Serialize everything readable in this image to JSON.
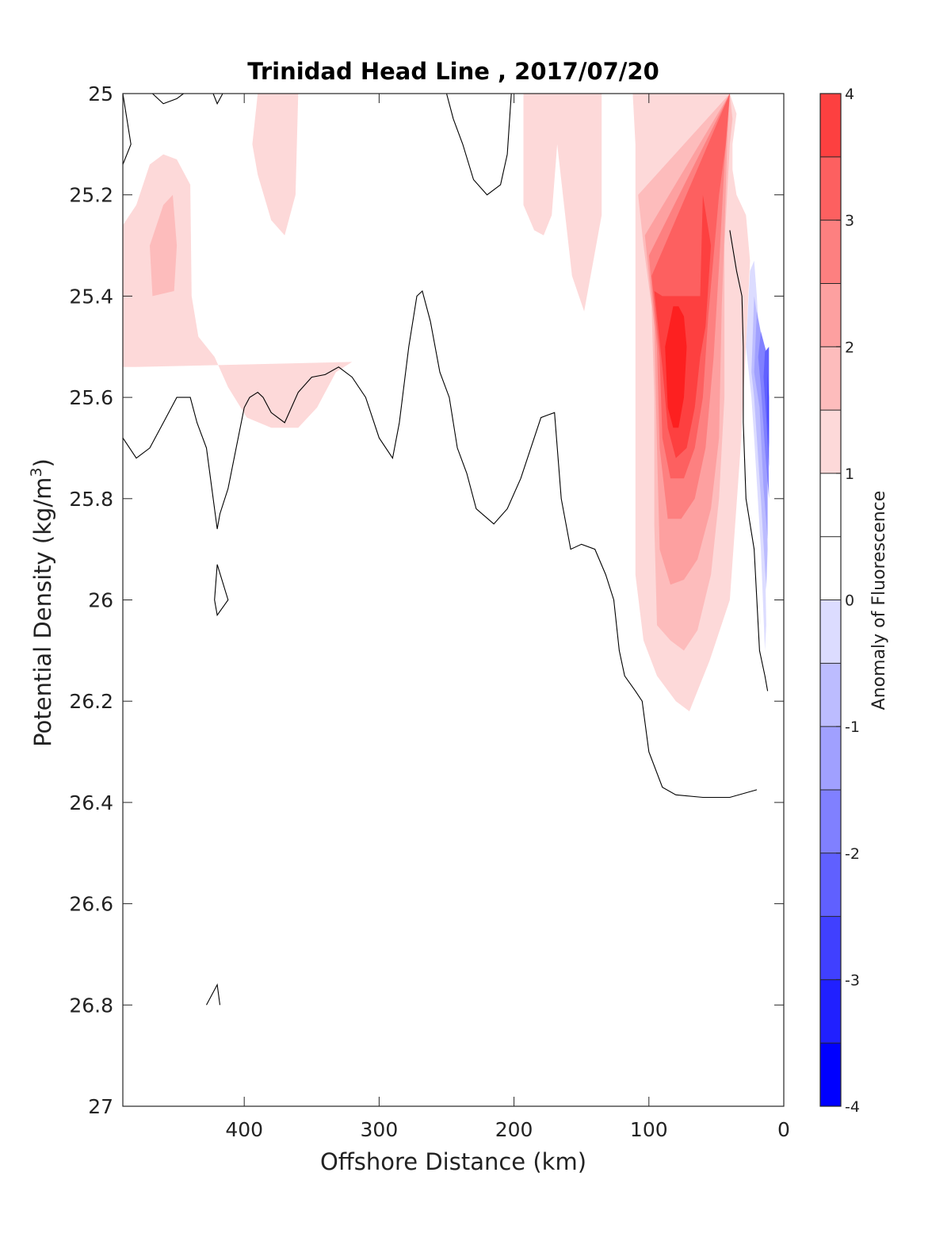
{
  "chart_data": {
    "type": "heatmap",
    "title": "Trinidad Head Line , 2017/07/20",
    "xlabel": "Offshore Distance (km)",
    "ylabel_main": "Potential Density (kg/m",
    "ylabel_sup": "3",
    "ylabel_close": ")",
    "xlim": [
      490,
      0
    ],
    "x_reversed": true,
    "ylim": [
      25,
      27
    ],
    "y_reversed": true,
    "xticks": [
      400,
      300,
      200,
      100,
      0
    ],
    "yticks": [
      25,
      25.2,
      25.4,
      25.6,
      25.8,
      26,
      26.2,
      26.4,
      26.6,
      26.8,
      27
    ],
    "ytick_labels": [
      "25",
      "25.2",
      "25.4",
      "25.6",
      "25.8",
      "26",
      "26.2",
      "26.4",
      "26.6",
      "26.8",
      "27"
    ],
    "colorbar": {
      "label": "Anomaly of Fluorescence",
      "range": [
        -4,
        4
      ],
      "ticks": [
        "-4",
        "-3",
        "-2",
        "-1",
        "0",
        "1",
        "2",
        "3",
        "4"
      ],
      "levels": [
        -4,
        -3.5,
        -3,
        -2.5,
        -2,
        -1.5,
        -1,
        -0.5,
        0,
        0.5,
        1,
        1.5,
        2,
        2.5,
        3,
        3.5,
        4
      ],
      "colors": [
        "#0000ff",
        "#2020ff",
        "#4040ff",
        "#6060ff",
        "#8080ff",
        "#a0a0ff",
        "#bcbcff",
        "#dcdcff",
        "#ffffff",
        "#ffffff",
        "#fdd9d9",
        "#fdbcbc",
        "#fda0a0",
        "#fd8080",
        "#fd6060",
        "#fd4040",
        "#fd2020",
        "#ff0000"
      ]
    },
    "filled_regions": [
      {
        "color": "#fdd9d9",
        "points": [
          [
            490,
            25.26
          ],
          [
            480,
            25.22
          ],
          [
            470,
            25.14
          ],
          [
            460,
            25.12
          ],
          [
            450,
            25.13
          ],
          [
            440,
            25.18
          ],
          [
            439,
            25.4
          ],
          [
            434,
            25.48
          ],
          [
            422,
            25.52
          ],
          [
            412,
            25.58
          ],
          [
            398,
            25.64
          ],
          [
            380,
            25.66
          ],
          [
            360,
            25.66
          ],
          [
            346,
            25.62
          ],
          [
            332,
            25.55
          ],
          [
            320,
            25.53
          ],
          [
            480,
            25.54
          ],
          [
            490,
            25.54
          ]
        ]
      },
      {
        "color": "#fdbcbc",
        "points": [
          [
            470,
            25.3
          ],
          [
            460,
            25.22
          ],
          [
            453,
            25.2
          ],
          [
            450,
            25.3
          ],
          [
            452,
            25.39
          ],
          [
            468,
            25.4
          ]
        ]
      },
      {
        "color": "#fdd9d9",
        "points": [
          [
            390,
            25
          ],
          [
            360,
            25
          ],
          [
            362,
            25.2
          ],
          [
            370,
            25.28
          ],
          [
            380,
            25.25
          ],
          [
            390,
            25.16
          ],
          [
            394,
            25.1
          ]
        ]
      },
      {
        "color": "#fdd9d9",
        "points": [
          [
            193,
            25
          ],
          [
            135,
            25
          ],
          [
            135,
            25.24
          ],
          [
            148,
            25.43
          ],
          [
            157,
            25.36
          ],
          [
            168,
            25.1
          ],
          [
            172,
            25.24
          ],
          [
            178,
            25.28
          ],
          [
            185,
            25.27
          ],
          [
            193,
            25.22
          ]
        ]
      },
      {
        "color": "#fdd9d9",
        "points": [
          [
            112,
            25
          ],
          [
            110,
            25.1
          ],
          [
            110,
            25.95
          ],
          [
            104,
            26.08
          ],
          [
            94,
            26.15
          ],
          [
            80,
            26.2
          ],
          [
            70,
            26.22
          ],
          [
            55,
            26.12
          ],
          [
            40,
            26
          ],
          [
            32,
            25.7
          ],
          [
            28,
            25.5
          ],
          [
            25,
            25.33
          ],
          [
            28,
            25.24
          ],
          [
            35,
            25.2
          ],
          [
            38,
            25.15
          ],
          [
            38,
            25.1
          ],
          [
            35,
            25.04
          ],
          [
            40,
            25
          ]
        ]
      },
      {
        "color": "#fdbcbc",
        "points": [
          [
            108,
            25.2
          ],
          [
            104,
            25.3
          ],
          [
            98,
            25.42
          ],
          [
            96,
            25.6
          ],
          [
            96,
            25.85
          ],
          [
            94,
            26.05
          ],
          [
            84,
            26.08
          ],
          [
            74,
            26.1
          ],
          [
            64,
            26.06
          ],
          [
            54,
            25.95
          ],
          [
            48,
            25.8
          ],
          [
            44,
            25.6
          ],
          [
            44,
            25.3
          ],
          [
            40,
            25.1
          ],
          [
            38,
            25.05
          ],
          [
            40,
            25
          ]
        ]
      },
      {
        "color": "#fda0a0",
        "points": [
          [
            103,
            25.28
          ],
          [
            96,
            25.46
          ],
          [
            94,
            25.7
          ],
          [
            92,
            25.9
          ],
          [
            84,
            25.97
          ],
          [
            74,
            25.96
          ],
          [
            64,
            25.92
          ],
          [
            54,
            25.82
          ],
          [
            48,
            25.68
          ],
          [
            46,
            25.42
          ],
          [
            44,
            25.28
          ],
          [
            42,
            25.1
          ],
          [
            40,
            25
          ]
        ]
      },
      {
        "color": "#fd8080",
        "points": [
          [
            100,
            25.32
          ],
          [
            94,
            25.5
          ],
          [
            92,
            25.7
          ],
          [
            86,
            25.84
          ],
          [
            76,
            25.84
          ],
          [
            66,
            25.8
          ],
          [
            58,
            25.7
          ],
          [
            52,
            25.52
          ],
          [
            48,
            25.34
          ],
          [
            44,
            25.14
          ],
          [
            40,
            25
          ]
        ]
      },
      {
        "color": "#fd6060",
        "points": [
          [
            98,
            25.36
          ],
          [
            92,
            25.52
          ],
          [
            90,
            25.68
          ],
          [
            84,
            25.76
          ],
          [
            74,
            25.76
          ],
          [
            66,
            25.7
          ],
          [
            60,
            25.6
          ],
          [
            56,
            25.44
          ],
          [
            52,
            25.32
          ],
          [
            48,
            25.2
          ],
          [
            43,
            25.1
          ],
          [
            40,
            25
          ]
        ]
      },
      {
        "color": "#fd4040",
        "points": [
          [
            96,
            25.39
          ],
          [
            90,
            25.54
          ],
          [
            86,
            25.66
          ],
          [
            80,
            25.72
          ],
          [
            72,
            25.7
          ],
          [
            66,
            25.62
          ],
          [
            62,
            25.52
          ],
          [
            58,
            25.46
          ],
          [
            54,
            25.3
          ],
          [
            60,
            25.2
          ],
          [
            62,
            25.4
          ],
          [
            70,
            25.4
          ],
          [
            80,
            25.4
          ],
          [
            90,
            25.4
          ]
        ]
      },
      {
        "color": "#fd2020",
        "points": [
          [
            82,
            25.42
          ],
          [
            88,
            25.5
          ],
          [
            86,
            25.62
          ],
          [
            82,
            25.66
          ],
          [
            78,
            25.66
          ],
          [
            74,
            25.6
          ],
          [
            72,
            25.5
          ],
          [
            74,
            25.44
          ],
          [
            78,
            25.42
          ]
        ]
      },
      {
        "color": "#dcdcff",
        "points": [
          [
            25,
            25.35
          ],
          [
            22,
            25.33
          ],
          [
            20,
            25.4
          ],
          [
            18,
            25.5
          ],
          [
            15,
            25.75
          ],
          [
            13,
            26.05
          ],
          [
            14,
            26.1
          ],
          [
            17,
            25.9
          ],
          [
            22,
            25.68
          ],
          [
            24,
            25.6
          ],
          [
            28,
            25.5
          ]
        ]
      },
      {
        "color": "#bcbcff",
        "points": [
          [
            22,
            25.4
          ],
          [
            19,
            25.45
          ],
          [
            14,
            25.55
          ],
          [
            12,
            25.9
          ],
          [
            13,
            25.98
          ],
          [
            17,
            25.8
          ],
          [
            22,
            25.6
          ],
          [
            24,
            25.55
          ]
        ]
      },
      {
        "color": "#a0a0ff",
        "points": [
          [
            20,
            25.43
          ],
          [
            15,
            25.5
          ],
          [
            12,
            25.6
          ],
          [
            12,
            25.88
          ],
          [
            15,
            25.78
          ],
          [
            18,
            25.62
          ],
          [
            22,
            25.55
          ]
        ]
      },
      {
        "color": "#8080ff",
        "points": [
          [
            17,
            25.47
          ],
          [
            12,
            25.52
          ],
          [
            11,
            25.8
          ],
          [
            14,
            25.7
          ],
          [
            17,
            25.58
          ],
          [
            19,
            25.52
          ]
        ]
      },
      {
        "color": "#6060ff",
        "points": [
          [
            14,
            25.51
          ],
          [
            11,
            25.5
          ],
          [
            11,
            25.74
          ],
          [
            13,
            25.64
          ],
          [
            15,
            25.56
          ]
        ]
      },
      {
        "color": "#4040ff",
        "points": [
          [
            12,
            25.55
          ],
          [
            11,
            25.6
          ],
          [
            11,
            25.7
          ],
          [
            12,
            25.64
          ]
        ]
      }
    ],
    "contour_lines": [
      {
        "points": [
          [
            490,
            25
          ],
          [
            484,
            25.1
          ],
          [
            490,
            25.14
          ]
        ]
      },
      {
        "points": [
          [
            468,
            25
          ],
          [
            460,
            25.02
          ],
          [
            450,
            25.01
          ],
          [
            445,
            25
          ]
        ]
      },
      {
        "points": [
          [
            423,
            25
          ],
          [
            420,
            25.02
          ],
          [
            416,
            25
          ]
        ]
      },
      {
        "points": [
          [
            250,
            25
          ],
          [
            245,
            25.05
          ],
          [
            238,
            25.1
          ],
          [
            230,
            25.17
          ],
          [
            220,
            25.2
          ],
          [
            210,
            25.18
          ],
          [
            205,
            25.12
          ],
          [
            202,
            25
          ]
        ]
      },
      {
        "points": [
          [
            490,
            25.68
          ],
          [
            480,
            25.72
          ],
          [
            470,
            25.7
          ],
          [
            460,
            25.65
          ],
          [
            450,
            25.6
          ],
          [
            440,
            25.6
          ],
          [
            435,
            25.65
          ],
          [
            428,
            25.7
          ],
          [
            424,
            25.78
          ],
          [
            420,
            25.86
          ],
          [
            418,
            25.83
          ],
          [
            412,
            25.78
          ],
          [
            406,
            25.7
          ],
          [
            400,
            25.62
          ],
          [
            396,
            25.6
          ],
          [
            390,
            25.59
          ],
          [
            386,
            25.6
          ],
          [
            380,
            25.63
          ],
          [
            370,
            25.65
          ],
          [
            360,
            25.59
          ],
          [
            350,
            25.56
          ],
          [
            340,
            25.555
          ],
          [
            330,
            25.54
          ],
          [
            320,
            25.56
          ],
          [
            310,
            25.6
          ],
          [
            300,
            25.68
          ],
          [
            290,
            25.72
          ],
          [
            285,
            25.65
          ],
          [
            278,
            25.5
          ],
          [
            272,
            25.4
          ],
          [
            268,
            25.39
          ],
          [
            262,
            25.45
          ],
          [
            255,
            25.55
          ],
          [
            248,
            25.6
          ],
          [
            242,
            25.7
          ],
          [
            235,
            25.75
          ],
          [
            228,
            25.82
          ],
          [
            215,
            25.85
          ],
          [
            205,
            25.82
          ],
          [
            195,
            25.76
          ],
          [
            190,
            25.72
          ],
          [
            180,
            25.64
          ],
          [
            175,
            25.635
          ],
          [
            170,
            25.63
          ],
          [
            165,
            25.8
          ],
          [
            158,
            25.9
          ],
          [
            150,
            25.89
          ],
          [
            140,
            25.9
          ],
          [
            132,
            25.95
          ],
          [
            126,
            26
          ],
          [
            122,
            26.1
          ],
          [
            118,
            26.15
          ],
          [
            110,
            26.18
          ],
          [
            105,
            26.2
          ],
          [
            100,
            26.3
          ],
          [
            90,
            26.37
          ],
          [
            80,
            26.385
          ],
          [
            60,
            26.39
          ],
          [
            40,
            26.39
          ],
          [
            20,
            26.375
          ]
        ]
      },
      {
        "points": [
          [
            420,
            25.93
          ],
          [
            422,
            26
          ],
          [
            420,
            26.03
          ],
          [
            412,
            26
          ],
          [
            420,
            25.93
          ]
        ]
      },
      {
        "points": [
          [
            428,
            26.8
          ],
          [
            420,
            26.76
          ],
          [
            418,
            26.8
          ]
        ]
      },
      {
        "points": [
          [
            40,
            25.27
          ],
          [
            35,
            25.35
          ],
          [
            31,
            25.4
          ],
          [
            30,
            25.5
          ],
          [
            30,
            25.65
          ],
          [
            28,
            25.8
          ],
          [
            22,
            25.9
          ],
          [
            20,
            26
          ],
          [
            18,
            26.1
          ],
          [
            14,
            26.15
          ],
          [
            12,
            26.18
          ]
        ]
      }
    ]
  }
}
